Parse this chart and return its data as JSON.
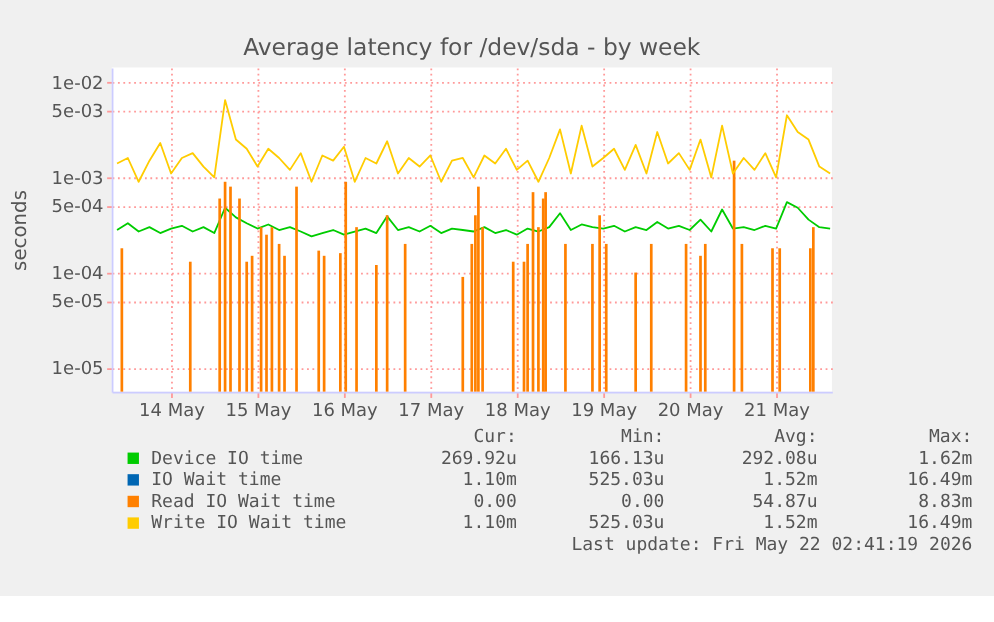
{
  "chart_data": {
    "type": "line",
    "title": "Average latency for /dev/sda - by week",
    "ylabel": "seconds",
    "log": true,
    "grid": true,
    "legend": "bottom",
    "xlim": [
      "2026-05-13T19:30",
      "2026-05-22T03:30"
    ],
    "xticks": [
      {
        "value": "2026-05-14T12:00",
        "label": "14 May"
      },
      {
        "value": "2026-05-15T12:00",
        "label": "15 May"
      },
      {
        "value": "2026-05-16T12:00",
        "label": "16 May"
      },
      {
        "value": "2026-05-17T12:00",
        "label": "17 May"
      },
      {
        "value": "2026-05-18T12:00",
        "label": "18 May"
      },
      {
        "value": "2026-05-19T12:00",
        "label": "19 May"
      },
      {
        "value": "2026-05-20T12:00",
        "label": "20 May"
      },
      {
        "value": "2026-05-21T12:00",
        "label": "21 May"
      }
    ],
    "ylim": [
      5.6e-06,
      0.0143
    ],
    "yticks": [
      {
        "value": 1e-05,
        "label": "1e-05"
      },
      {
        "value": 5e-05,
        "label": "5e-05"
      },
      {
        "value": 0.0001,
        "label": "1e-04"
      },
      {
        "value": 0.0005,
        "label": "5e-04"
      },
      {
        "value": 0.001,
        "label": "1e-03"
      },
      {
        "value": 0.005,
        "label": "5e-03"
      },
      {
        "value": 0.01,
        "label": "1e-02"
      }
    ],
    "x": [
      "2026-05-13T21:00",
      "2026-05-14T00:00",
      "2026-05-14T03:00",
      "2026-05-14T06:00",
      "2026-05-14T09:00",
      "2026-05-14T12:00",
      "2026-05-14T15:00",
      "2026-05-14T18:00",
      "2026-05-14T21:00",
      "2026-05-15T00:00",
      "2026-05-15T03:00",
      "2026-05-15T06:00",
      "2026-05-15T09:00",
      "2026-05-15T12:00",
      "2026-05-15T15:00",
      "2026-05-15T18:00",
      "2026-05-15T21:00",
      "2026-05-16T00:00",
      "2026-05-16T03:00",
      "2026-05-16T06:00",
      "2026-05-16T09:00",
      "2026-05-16T12:00",
      "2026-05-16T15:00",
      "2026-05-16T18:00",
      "2026-05-16T21:00",
      "2026-05-17T00:00",
      "2026-05-17T03:00",
      "2026-05-17T06:00",
      "2026-05-17T09:00",
      "2026-05-17T12:00",
      "2026-05-17T15:00",
      "2026-05-17T18:00",
      "2026-05-17T21:00",
      "2026-05-18T00:00",
      "2026-05-18T03:00",
      "2026-05-18T06:00",
      "2026-05-18T09:00",
      "2026-05-18T12:00",
      "2026-05-18T15:00",
      "2026-05-18T18:00",
      "2026-05-18T21:00",
      "2026-05-19T00:00",
      "2026-05-19T03:00",
      "2026-05-19T06:00",
      "2026-05-19T09:00",
      "2026-05-19T12:00",
      "2026-05-19T15:00",
      "2026-05-19T18:00",
      "2026-05-19T21:00",
      "2026-05-20T00:00",
      "2026-05-20T03:00",
      "2026-05-20T06:00",
      "2026-05-20T09:00",
      "2026-05-20T12:00",
      "2026-05-20T15:00",
      "2026-05-20T18:00",
      "2026-05-20T21:00",
      "2026-05-21T00:00",
      "2026-05-21T03:00",
      "2026-05-21T06:00",
      "2026-05-21T09:00",
      "2026-05-21T12:00",
      "2026-05-21T15:00",
      "2026-05-21T18:00",
      "2026-05-21T21:00",
      "2026-05-22T00:00",
      "2026-05-22T03:00"
    ],
    "series": [
      {
        "name": "Device IO time",
        "color": "#00cc00",
        "values": [
          0.00028,
          0.00033,
          0.00027,
          0.0003,
          0.00026,
          0.00029,
          0.00031,
          0.00027,
          0.0003,
          0.00026,
          0.00048,
          0.00038,
          0.00033,
          0.00029,
          0.00032,
          0.00028,
          0.0003,
          0.00027,
          0.00024,
          0.00026,
          0.00028,
          0.00025,
          0.00027,
          0.00029,
          0.00026,
          0.00039,
          0.00028,
          0.0003,
          0.00027,
          0.00031,
          0.00026,
          0.00029,
          0.00028,
          0.00027,
          0.0003,
          0.00026,
          0.00028,
          0.00025,
          0.00029,
          0.00027,
          0.0003,
          0.00042,
          0.00028,
          0.00032,
          0.0003,
          0.00029,
          0.00031,
          0.00027,
          0.0003,
          0.00028,
          0.00034,
          0.00029,
          0.00031,
          0.00028,
          0.00036,
          0.00027,
          0.00046,
          0.00029,
          0.0003,
          0.00028,
          0.00031,
          0.00029,
          0.00055,
          0.00048,
          0.00036,
          0.0003,
          0.00029
        ]
      },
      {
        "name": "IO Wait time",
        "color": "#0066b3",
        "values": [
          null,
          null,
          null,
          null,
          null,
          null,
          null,
          null,
          null,
          null,
          null,
          null,
          null,
          null,
          null,
          null,
          null,
          null,
          null,
          null,
          null,
          null,
          null,
          null,
          null,
          null,
          null,
          null,
          null,
          null,
          null,
          null,
          null,
          null,
          null,
          null,
          null,
          null,
          null,
          null,
          null,
          null,
          null,
          null,
          null,
          null,
          null,
          null,
          null,
          null,
          null,
          null,
          null,
          null,
          null,
          null,
          null,
          null,
          null,
          null,
          null,
          null,
          null,
          null,
          null,
          null,
          null
        ]
      },
      {
        "name": "Read IO Wait time",
        "type": "bar",
        "color": "#ff8000",
        "x": [
          "2026-05-13T22:20",
          "2026-05-14T17:20",
          "2026-05-15T01:30",
          "2026-05-15T03:00",
          "2026-05-15T04:30",
          "2026-05-15T07:00",
          "2026-05-15T09:00",
          "2026-05-15T10:30",
          "2026-05-15T13:00",
          "2026-05-15T14:30",
          "2026-05-15T16:00",
          "2026-05-15T18:00",
          "2026-05-15T19:30",
          "2026-05-15T22:50",
          "2026-05-16T05:00",
          "2026-05-16T06:30",
          "2026-05-16T11:00",
          "2026-05-16T12:30",
          "2026-05-16T15:30",
          "2026-05-16T21:00",
          "2026-05-17T00:00",
          "2026-05-17T05:00",
          "2026-05-17T21:00",
          "2026-05-17T23:30",
          "2026-05-18T00:30",
          "2026-05-18T01:20",
          "2026-05-18T02:30",
          "2026-05-18T11:00",
          "2026-05-18T14:00",
          "2026-05-18T15:00",
          "2026-05-18T16:30",
          "2026-05-18T18:00",
          "2026-05-18T19:20",
          "2026-05-18T20:00",
          "2026-05-19T01:30",
          "2026-05-19T09:00",
          "2026-05-19T11:00",
          "2026-05-19T12:50",
          "2026-05-19T21:00",
          "2026-05-20T01:20",
          "2026-05-20T11:00",
          "2026-05-20T15:00",
          "2026-05-20T16:20",
          "2026-05-21T00:20",
          "2026-05-21T02:30",
          "2026-05-21T11:00",
          "2026-05-21T13:00",
          "2026-05-21T21:30",
          "2026-05-21T22:20"
        ],
        "values": [
          0.00018,
          0.00013,
          0.0006,
          0.0009,
          0.0008,
          0.0006,
          0.00013,
          0.00015,
          0.0003,
          0.00025,
          0.0003,
          0.0002,
          0.00015,
          0.0008,
          0.00017,
          0.00015,
          0.00016,
          0.0009,
          0.0003,
          0.00012,
          0.0004,
          0.0002,
          9e-05,
          0.0002,
          0.0004,
          0.0008,
          0.0003,
          0.00013,
          0.00013,
          0.0002,
          0.0007,
          0.0003,
          0.0006,
          0.0007,
          0.0002,
          0.0002,
          0.0004,
          0.0002,
          0.0001,
          0.0002,
          0.0002,
          0.00015,
          0.0002,
          0.0015,
          0.0002,
          0.00018,
          0.00018,
          0.00018,
          0.0003
        ]
      },
      {
        "name": "Write IO Wait time",
        "color": "#ffcc00",
        "values": [
          0.0014,
          0.0016,
          0.0009,
          0.0015,
          0.0023,
          0.0011,
          0.0016,
          0.0018,
          0.0013,
          0.001,
          0.0065,
          0.0025,
          0.002,
          0.0013,
          0.002,
          0.0016,
          0.0012,
          0.0018,
          0.0009,
          0.0017,
          0.0015,
          0.0021,
          0.0009,
          0.0016,
          0.0014,
          0.0024,
          0.0011,
          0.0016,
          0.0013,
          0.0017,
          0.0009,
          0.0015,
          0.0016,
          0.001,
          0.0017,
          0.0014,
          0.002,
          0.0012,
          0.0015,
          0.0009,
          0.0016,
          0.0032,
          0.0011,
          0.0035,
          0.0013,
          0.0016,
          0.002,
          0.0012,
          0.0022,
          0.0011,
          0.003,
          0.0014,
          0.0018,
          0.0012,
          0.0025,
          0.001,
          0.0035,
          0.0011,
          0.0016,
          0.0012,
          0.0018,
          0.001,
          0.0045,
          0.003,
          0.0025,
          0.0013,
          0.0011
        ]
      }
    ],
    "annotations": [
      "Cur:",
      "Min:",
      "Avg:",
      "Max:",
      "269.92u",
      "166.13u",
      "292.08u",
      "1.62m",
      "1.10m",
      "525.03u",
      "1.52m",
      "16.49m",
      "0.00",
      "0.00",
      "54.87u",
      "8.83m",
      "1.10m",
      "525.03u",
      "1.52m",
      "16.49m",
      "Last update: Fri May 22 02:41:19 2026"
    ]
  }
}
